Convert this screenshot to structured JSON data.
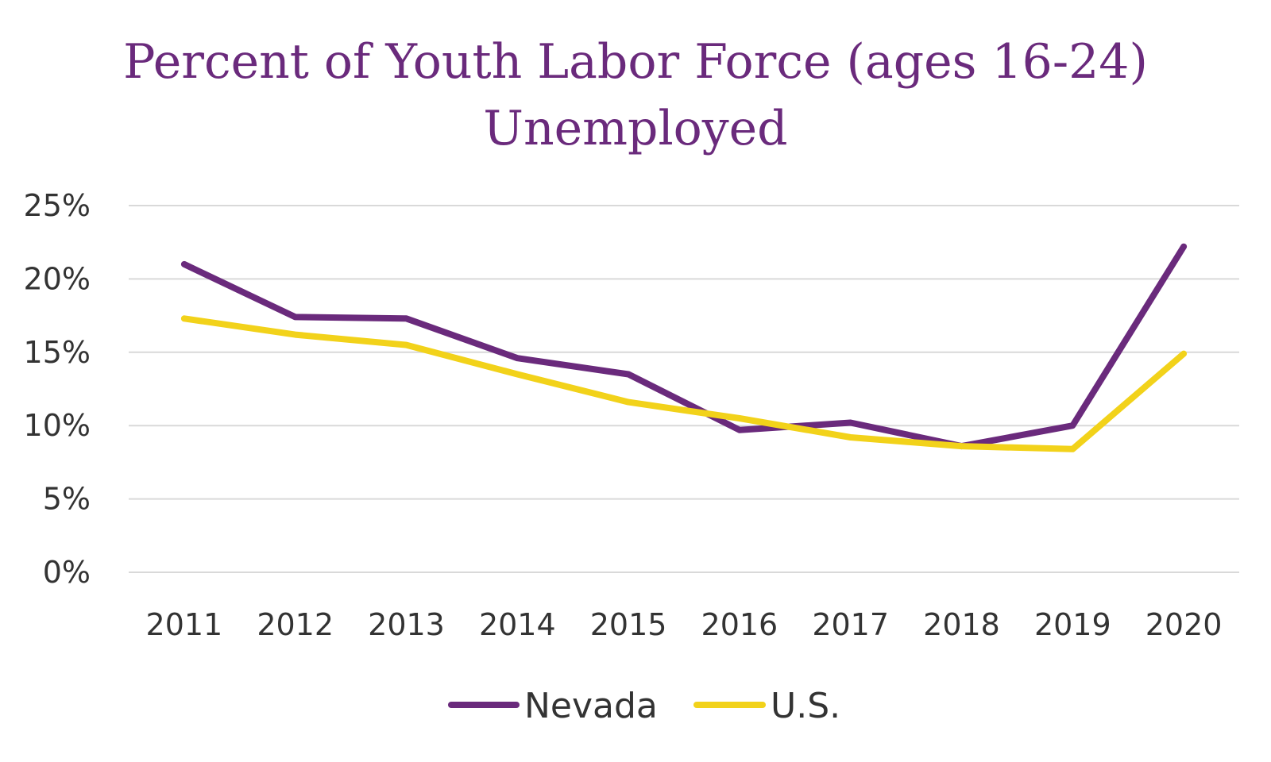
{
  "chart_data": {
    "type": "line",
    "title_lines": [
      "Percent of Youth Labor Force (ages 16-24)",
      "Unemployed"
    ],
    "categories": [
      "2011",
      "2012",
      "2013",
      "2014",
      "2015",
      "2016",
      "2017",
      "2018",
      "2019",
      "2020"
    ],
    "series": [
      {
        "name": "Nevada",
        "color": "#6a2a7c",
        "values": [
          21.0,
          17.4,
          17.3,
          14.6,
          13.5,
          9.7,
          10.2,
          8.6,
          10.0,
          22.2
        ]
      },
      {
        "name": "U.S.",
        "color": "#f2d21a",
        "values": [
          17.3,
          16.2,
          15.5,
          13.5,
          11.6,
          10.5,
          9.2,
          8.6,
          8.4,
          14.9
        ]
      }
    ],
    "y_ticks": [
      "0%",
      "5%",
      "10%",
      "15%",
      "20%",
      "25%"
    ],
    "y_tick_values": [
      0,
      5,
      10,
      15,
      20,
      25
    ],
    "ylim": [
      0,
      25
    ],
    "grid": true,
    "legend": "bottom"
  }
}
